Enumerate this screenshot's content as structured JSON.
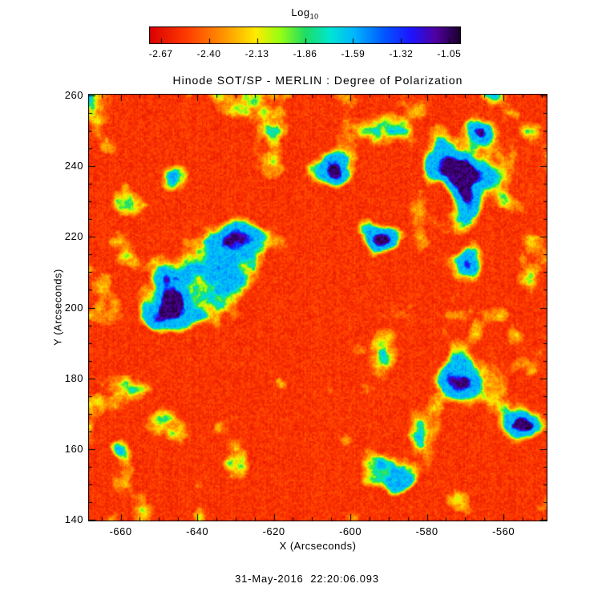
{
  "colorbar": {
    "label_main": "Log",
    "label_sub": "10",
    "tick_labels": [
      "-2.67",
      "-2.40",
      "-2.13",
      "-1.86",
      "-1.59",
      "-1.32",
      "-1.05"
    ]
  },
  "plot": {
    "title": "Hinode SOT/SP - MERLIN : Degree of Polarization",
    "xlabel": "X (Arcseconds)",
    "ylabel": "Y (Arcseconds)",
    "x_tick_labels": [
      "-660",
      "-640",
      "-620",
      "-600",
      "-580",
      "-560"
    ],
    "y_tick_labels": [
      "140",
      "160",
      "180",
      "200",
      "220",
      "240",
      "260"
    ]
  },
  "footer": {
    "timestamp": "31-May-2016  22:20:06.093"
  },
  "chart_data": {
    "type": "heatmap",
    "title": "Hinode SOT/SP - MERLIN : Degree of Polarization",
    "xlabel": "X (Arcseconds)",
    "ylabel": "Y (Arcseconds)",
    "xlim": [
      -668.5,
      -548.5
    ],
    "ylim": [
      139.5,
      260.5
    ],
    "x_ticks": [
      -660,
      -640,
      -620,
      -600,
      -580,
      -560
    ],
    "y_ticks": [
      140,
      160,
      180,
      200,
      220,
      240,
      260
    ],
    "grid": false,
    "colorbar": {
      "label": "Log10",
      "orientation": "horizontal",
      "position": "top",
      "range": [
        -2.736,
        -0.984
      ],
      "ticks": [
        -2.67,
        -2.4,
        -2.13,
        -1.86,
        -1.59,
        -1.32,
        -1.05
      ]
    },
    "colormap_stops": [
      {
        "t": 0.0,
        "color": "#dc0000"
      },
      {
        "t": 0.12,
        "color": "#ff3c00"
      },
      {
        "t": 0.24,
        "color": "#ff9600"
      },
      {
        "t": 0.34,
        "color": "#ffeb00"
      },
      {
        "t": 0.42,
        "color": "#96ff14"
      },
      {
        "t": 0.5,
        "color": "#1edc64"
      },
      {
        "t": 0.58,
        "color": "#00e6d2"
      },
      {
        "t": 0.66,
        "color": "#00b4ff"
      },
      {
        "t": 0.75,
        "color": "#005aff"
      },
      {
        "t": 0.84,
        "color": "#1e14ff"
      },
      {
        "t": 0.92,
        "color": "#5000a0"
      },
      {
        "t": 1.0,
        "color": "#190028"
      }
    ],
    "background_value_range": [
      -2.74,
      -2.45
    ],
    "high_value_regions": [
      {
        "x": -641,
        "y": 211,
        "r": 19,
        "w": 1.0
      },
      {
        "x": -629,
        "y": 222,
        "r": 10,
        "w": 0.75
      },
      {
        "x": -648,
        "y": 198,
        "r": 9,
        "w": 0.8
      },
      {
        "x": -646,
        "y": 238,
        "r": 8,
        "w": 0.7
      },
      {
        "x": -606,
        "y": 239,
        "r": 8,
        "w": 0.85
      },
      {
        "x": -593,
        "y": 221,
        "r": 9,
        "w": 0.85
      },
      {
        "x": -574,
        "y": 241,
        "r": 10,
        "w": 0.9
      },
      {
        "x": -566,
        "y": 231,
        "r": 12,
        "w": 1.0
      },
      {
        "x": -567,
        "y": 250,
        "r": 7,
        "w": 0.7
      },
      {
        "x": -568,
        "y": 212,
        "r": 8,
        "w": 0.7
      },
      {
        "x": -571,
        "y": 180,
        "r": 9,
        "w": 0.8
      },
      {
        "x": -556,
        "y": 168,
        "r": 8,
        "w": 0.7
      },
      {
        "x": -594,
        "y": 155,
        "r": 8,
        "w": 0.8
      },
      {
        "x": -587,
        "y": 151,
        "r": 7,
        "w": 0.7
      },
      {
        "x": -600,
        "y": 190,
        "r": 6,
        "w": 0.6
      },
      {
        "x": -618,
        "y": 180,
        "r": 5,
        "w": 0.4
      },
      {
        "x": -660,
        "y": 161,
        "r": 5,
        "w": 0.6
      }
    ]
  }
}
